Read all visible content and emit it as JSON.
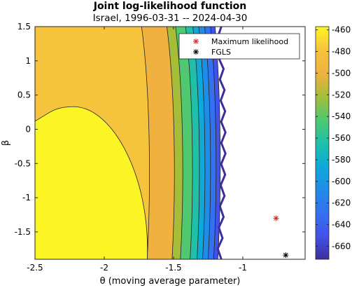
{
  "chart_data": {
    "type": "contour",
    "title": "Joint log-likelihood function",
    "subtitle": "Israel, 1996-03-31 -- 2024-04-30",
    "xlabel": "θ (moving average parameter)",
    "ylabel": "β",
    "xlim": [
      -2.5,
      -0.55
    ],
    "ylim": [
      -1.9,
      1.5
    ],
    "xticks": [
      "-2.5",
      "-2",
      "-1.5",
      "-1"
    ],
    "xtick_values": [
      -2.5,
      -2,
      -1.5,
      -1
    ],
    "yticks": [
      "1.5",
      "1",
      "0.5",
      "0",
      "-0.5",
      "-1",
      "-1.5"
    ],
    "ytick_values": [
      1.5,
      1,
      0.5,
      0,
      -0.5,
      -1,
      -1.5
    ],
    "colorbar": {
      "ticks": [
        "-460",
        "-480",
        "-500",
        "-520",
        "-540",
        "-560",
        "-580",
        "-600",
        "-620",
        "-640",
        "-660"
      ],
      "tick_values": [
        -460,
        -480,
        -500,
        -520,
        -540,
        -560,
        -580,
        -600,
        -620,
        -640,
        -660
      ],
      "range": [
        -672,
        -457
      ],
      "colormap": [
        "#fcf525",
        "#f6c33c",
        "#f0b13f",
        "#a6bd3a",
        "#4fc870",
        "#20c0a8",
        "#0fa9d9",
        "#1f8ce8",
        "#3471f0",
        "#4253e8",
        "#3e2e9c"
      ]
    },
    "contour_levels": [
      {
        "max_x": -1.68,
        "color": "#f6c33c"
      },
      {
        "max_x": -1.5,
        "color": "#f0b13f"
      },
      {
        "max_x": -1.44,
        "color": "#a6bd3a"
      },
      {
        "max_x": -1.37,
        "color": "#4fc870"
      },
      {
        "max_x": -1.32,
        "color": "#20c0a8"
      },
      {
        "max_x": -1.28,
        "color": "#0fa9d9"
      },
      {
        "max_x": -1.24,
        "color": "#1f8ce8"
      },
      {
        "max_x": -1.2,
        "color": "#3471f0"
      },
      {
        "max_x": -1.17,
        "color": "#4253e8"
      }
    ],
    "inner_region": {
      "color": "#fcf525",
      "peak_x": -2.22,
      "peak_y": 0.33,
      "right_bottom_x": -1.69,
      "left_top_y": 0.18
    },
    "points": [
      {
        "name": "Maximum likelihood",
        "x": -0.76,
        "y": -1.3,
        "color": "#d62728",
        "marker": "*"
      },
      {
        "name": "FGLS",
        "x": -0.69,
        "y": -1.84,
        "color": "#000000",
        "marker": "*"
      }
    ],
    "legend": {
      "position": "top-right",
      "entries": [
        "Maximum likelihood",
        "FGLS"
      ]
    }
  }
}
